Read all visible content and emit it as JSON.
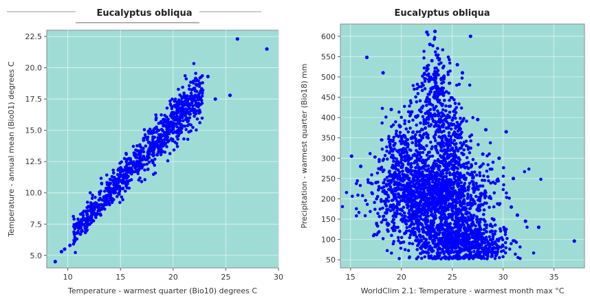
{
  "chart_data": [
    {
      "type": "scatter",
      "title": "Eucalyptus obliqua",
      "xlabel": "Temperature - warmest quarter (Bio10) degrees C",
      "ylabel": "Temperature - annual mean (Bio01) degrees C",
      "xlim": [
        8,
        30
      ],
      "ylim": [
        4,
        23
      ],
      "xticks": [
        10,
        15,
        20,
        25,
        30
      ],
      "yticks": [
        5.0,
        7.5,
        10.0,
        12.5,
        15.0,
        17.5,
        20.0,
        22.5
      ],
      "tick_labels_x": [
        "10",
        "15",
        "20",
        "25",
        "30"
      ],
      "tick_labels_y": [
        "5.0",
        "7.5",
        "10.0",
        "12.5",
        "15.0",
        "17.5",
        "20.0",
        "22.5"
      ],
      "grid": true,
      "background_color": "#a0dcd6",
      "point_color": "#0000ff",
      "points": [
        [
          8.8,
          4.5
        ],
        [
          9.4,
          5.3
        ],
        [
          9.7,
          5.5
        ],
        [
          10.2,
          5.8
        ],
        [
          10.6,
          6.2
        ],
        [
          11.2,
          6.7
        ],
        [
          11.8,
          7.3
        ],
        [
          12.3,
          7.8
        ],
        [
          12.8,
          8.3
        ],
        [
          13.2,
          8.7
        ],
        [
          13.6,
          9.1
        ],
        [
          14.0,
          9.6
        ],
        [
          14.4,
          10.0
        ],
        [
          14.8,
          10.4
        ],
        [
          15.2,
          10.8
        ],
        [
          15.6,
          11.2
        ],
        [
          16.0,
          11.6
        ],
        [
          16.4,
          12.0
        ],
        [
          16.8,
          12.4
        ],
        [
          17.2,
          12.8
        ],
        [
          17.6,
          13.2
        ],
        [
          18.0,
          13.6
        ],
        [
          18.4,
          14.0
        ],
        [
          18.8,
          14.4
        ],
        [
          19.2,
          14.8
        ],
        [
          19.6,
          15.2
        ],
        [
          20.0,
          15.6
        ],
        [
          20.4,
          15.9
        ],
        [
          20.8,
          16.3
        ],
        [
          21.2,
          16.7
        ],
        [
          21.6,
          17.1
        ],
        [
          22.0,
          17.4
        ],
        [
          22.4,
          17.8
        ],
        [
          22.8,
          18.2
        ],
        [
          23.3,
          19.3
        ],
        [
          24.0,
          17.5
        ],
        [
          25.4,
          17.8
        ],
        [
          26.1,
          22.3
        ],
        [
          28.9,
          21.5
        ]
      ],
      "band": {
        "x_from": 10.5,
        "x_to": 22.8,
        "slope": 0.93,
        "intercept": -3.0,
        "spread": 1.4,
        "count": 900
      }
    },
    {
      "type": "scatter",
      "title": "Eucalyptus obliqua",
      "xlabel": "WorldClim 2.1: Temperature - warmest month max °C",
      "ylabel": "Precipitation - warmest quarter (Bio18) mm",
      "xlim": [
        14,
        38
      ],
      "ylim": [
        30,
        630
      ],
      "xticks": [
        15,
        20,
        25,
        30,
        35
      ],
      "yticks": [
        50,
        100,
        150,
        200,
        250,
        300,
        350,
        400,
        450,
        500,
        550,
        600
      ],
      "tick_labels_x": [
        "15",
        "20",
        "25",
        "30",
        "35"
      ],
      "tick_labels_y": [
        "50",
        "100",
        "150",
        "200",
        "250",
        "300",
        "350",
        "400",
        "450",
        "500",
        "550",
        "600"
      ],
      "grid": true,
      "background_color": "#a0dcd6",
      "point_color": "#0000ff",
      "points": [
        [
          15.1,
          305
        ],
        [
          16.6,
          548
        ],
        [
          18.2,
          510
        ],
        [
          19.0,
          420
        ],
        [
          19.8,
          380
        ],
        [
          20.3,
          355
        ],
        [
          22.5,
          610
        ],
        [
          23.3,
          612
        ],
        [
          22.8,
          580
        ],
        [
          23.0,
          540
        ],
        [
          23.5,
          470
        ],
        [
          24.0,
          430
        ],
        [
          25.5,
          530
        ],
        [
          26.0,
          510
        ],
        [
          27.5,
          395
        ],
        [
          28.3,
          370
        ],
        [
          30.3,
          365
        ],
        [
          29.6,
          300
        ],
        [
          31.0,
          250
        ],
        [
          32.2,
          145
        ],
        [
          33.5,
          130
        ],
        [
          37.0,
          96
        ],
        [
          31.4,
          160
        ],
        [
          30.8,
          180
        ],
        [
          26.8,
          600
        ],
        [
          24.5,
          400
        ],
        [
          28.0,
          310
        ],
        [
          16.0,
          280
        ],
        [
          17.5,
          240
        ]
      ],
      "clusters": [
        {
          "cx": 23.0,
          "cy": 200,
          "sx": 2.8,
          "sy": 55,
          "count": 1500
        },
        {
          "cx": 26.0,
          "cy": 95,
          "sx": 2.2,
          "sy": 28,
          "count": 700
        },
        {
          "cx": 20.2,
          "cy": 300,
          "sx": 1.0,
          "sy": 45,
          "count": 220
        },
        {
          "cx": 24.8,
          "cy": 330,
          "sx": 0.9,
          "sy": 60,
          "count": 260
        },
        {
          "cx": 23.2,
          "cy": 470,
          "sx": 0.8,
          "sy": 55,
          "count": 180
        },
        {
          "cx": 22.3,
          "cy": 390,
          "sx": 1.1,
          "sy": 40,
          "count": 100
        }
      ]
    }
  ]
}
